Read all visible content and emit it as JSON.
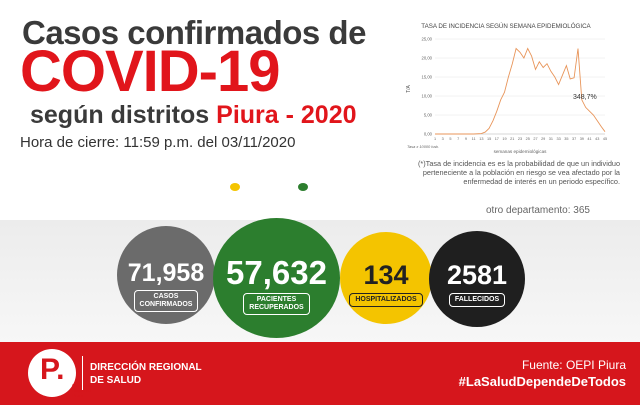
{
  "header": {
    "line1": "Casos confirmados de",
    "line2": "COVID-19",
    "line3_prefix": "según distritos",
    "line3_highlight": "Piura - 2020",
    "closing_time": "Hora de cierre: 11:59 p.m. del 03/11/2020"
  },
  "chart_data": {
    "type": "line",
    "title": "TASA DE INCIDENCIA SEGÚN SEMANA EPIDEMIOLÓGICA",
    "xlabel": "semanas epidemiológicas",
    "ylabel": "T/A",
    "note_x": "Tasa x 10000 hab.",
    "xlim": [
      1,
      45
    ],
    "ylim": [
      0,
      25
    ],
    "y_ticks": [
      "0,00",
      "5,00",
      "10,00",
      "15,00",
      "20,00",
      "25,00"
    ],
    "x_ticks": [
      "1",
      "3",
      "5",
      "7",
      "9",
      "11",
      "13",
      "15",
      "17",
      "19",
      "21",
      "23",
      "25",
      "27",
      "29",
      "31",
      "33",
      "35",
      "37",
      "39",
      "41",
      "43",
      "45"
    ],
    "x": [
      1,
      3,
      5,
      7,
      9,
      11,
      13,
      14,
      15,
      16,
      17,
      18,
      19,
      20,
      21,
      22,
      23,
      24,
      25,
      26,
      27,
      28,
      29,
      30,
      31,
      32,
      33,
      34,
      35,
      36,
      37,
      38,
      39,
      40,
      41,
      42,
      43,
      44,
      45
    ],
    "values": [
      0.0,
      0.0,
      0.0,
      0.0,
      0.0,
      0.0,
      0.1,
      0.5,
      1.5,
      3.5,
      6.0,
      9.0,
      11.0,
      15.0,
      18.5,
      22.5,
      21.5,
      20.0,
      22.5,
      20.5,
      17.0,
      19.0,
      17.5,
      18.5,
      16.5,
      15.0,
      13.0,
      15.5,
      18.0,
      14.5,
      14.8,
      22.5,
      9.0,
      7.0,
      6.0,
      5.0,
      3.5,
      2.0,
      0.6
    ],
    "annotation": "348,7%",
    "line_color": "#e8955a"
  },
  "chart_footnote": "(*)Tasa de incidencia es es la probabilidad de que un individuo perteneciente a la población en riesgo se vea afectado por la enfermedad de interés en un periodo específico.",
  "partial_text": "otro departamento: 365",
  "stats": {
    "confirmed": {
      "value": "71,958",
      "label_line1": "CASOS",
      "label_line2": "CONFIRMADOS",
      "color": "#6b6b6b"
    },
    "recovered": {
      "value": "57,632",
      "label_line1": "PACIENTES",
      "label_line2": "RECUPERADOS",
      "color": "#2c7e2e"
    },
    "hospitalized": {
      "value": "134",
      "label": "HOSPITALIZADOS",
      "color": "#f4c400"
    },
    "deaths": {
      "value": "2581",
      "label": "FALLECIDOS",
      "color": "#1f1f1f"
    }
  },
  "footer": {
    "logo_letter": "P.",
    "logo_text_1": "Gobierno",
    "logo_text_2": "Regional",
    "logo_text_3": "Piura",
    "org_line1": "DIRECCIÓN REGIONAL",
    "org_line2": "DE SALUD",
    "source": "Fuente: OEPI Piura",
    "hashtag": "#LaSaludDependeDeTodos",
    "color": "#d6161c"
  }
}
